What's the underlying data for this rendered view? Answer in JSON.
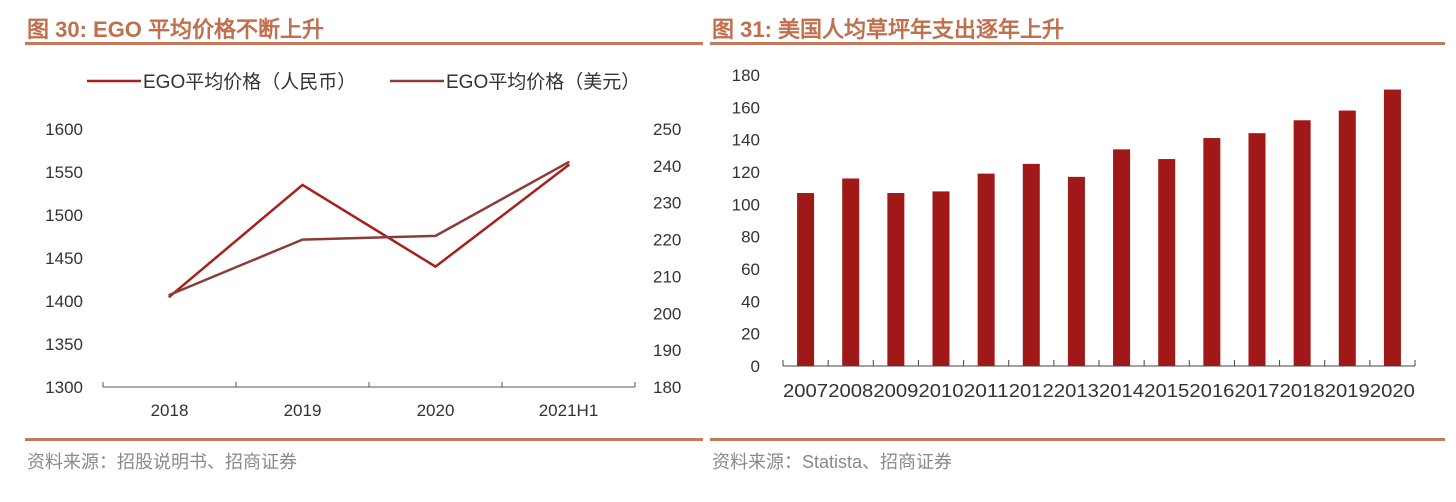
{
  "left": {
    "title": "图 30:  EGO 平均价格不断上升",
    "source": "资料来源：招股说明书、招商证券",
    "chart_data": {
      "type": "line",
      "categories": [
        "2018",
        "2019",
        "2020",
        "2021H1"
      ],
      "series": [
        {
          "name": "EGO平均价格（人民币）",
          "axis": "left",
          "color": "#a8201e",
          "values": [
            1405,
            1535,
            1440,
            1558
          ]
        },
        {
          "name": "EGO平均价格（美元）",
          "axis": "right",
          "color": "#8b3c3a",
          "values": [
            205,
            220,
            221,
            241
          ]
        }
      ],
      "y_left": {
        "lim": [
          1300,
          1600
        ],
        "ticks": [
          "1300",
          "1350",
          "1400",
          "1450",
          "1500",
          "1550",
          "1600"
        ]
      },
      "y_right": {
        "lim": [
          180,
          250
        ],
        "ticks": [
          "180",
          "190",
          "200",
          "210",
          "220",
          "230",
          "240",
          "250"
        ]
      },
      "legend": "top",
      "grid": false
    }
  },
  "right": {
    "title": "图 31:  美国人均草坪年支出逐年上升",
    "source": "资料来源：Statista、招商证券",
    "chart_data": {
      "type": "bar",
      "categories": [
        "2007",
        "2008",
        "2009",
        "2010",
        "2011",
        "2012",
        "2013",
        "2014",
        "2015",
        "2016",
        "2017",
        "2018",
        "2019",
        "2020"
      ],
      "values": [
        107,
        116,
        107,
        108,
        119,
        125,
        117,
        134,
        128,
        141,
        144,
        152,
        158,
        171
      ],
      "color": "#a01818",
      "ylim": [
        0,
        180
      ],
      "yticks": [
        "0",
        "20",
        "40",
        "60",
        "80",
        "100",
        "120",
        "140",
        "160",
        "180"
      ],
      "grid": false
    }
  }
}
